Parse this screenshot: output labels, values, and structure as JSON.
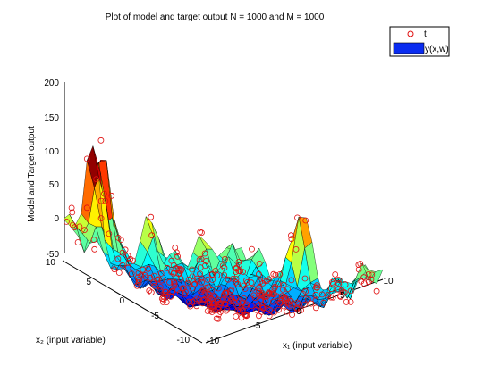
{
  "chart_data": {
    "type": "surface3d",
    "title": "Plot of model and target output N = 1000 and M = 1000",
    "xlabel": "x₁ (input variable)",
    "ylabel": "x₂ (input variable)",
    "zlabel": "Model and Target output",
    "xlim": [
      -10,
      10
    ],
    "ylim": [
      -10,
      10
    ],
    "zlim": [
      -50,
      200
    ],
    "x_ticks": [
      "-10",
      "-5",
      "0",
      "5",
      "10"
    ],
    "y_ticks": [
      "-10",
      "-5",
      "0",
      "5",
      "10"
    ],
    "z_ticks": [
      "-50",
      "0",
      "50",
      "100",
      "150",
      "200"
    ],
    "legend": {
      "placement": "top-right",
      "entries": [
        {
          "label": "t",
          "marker": "circle",
          "color": "#e01010"
        },
        {
          "label": "y(x,w)",
          "marker": "surface",
          "color": "#0a2cf0"
        }
      ]
    },
    "series": [
      {
        "name": "t",
        "kind": "scatter",
        "n_points": 1000,
        "color": "#e01010"
      },
      {
        "name": "y(x,w)",
        "kind": "surface",
        "colormap": "jet"
      }
    ],
    "N": 1000,
    "M": 1000
  }
}
